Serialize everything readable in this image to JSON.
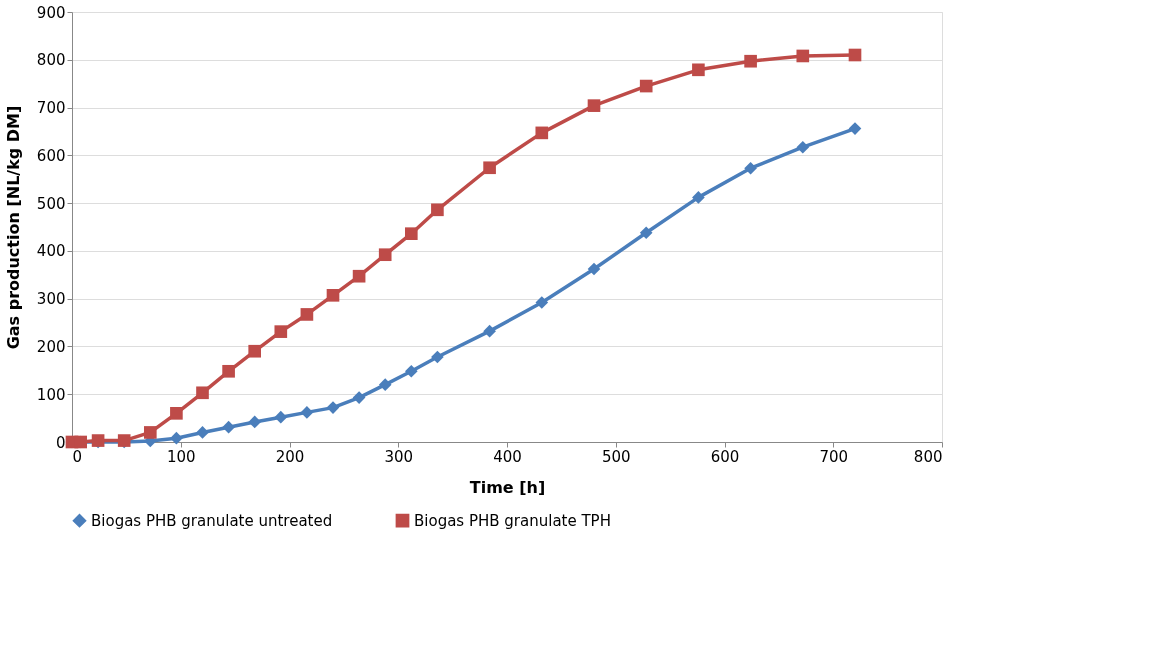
{
  "chart_data": {
    "type": "line",
    "xlabel": "Time [h]",
    "ylabel": "Gas production [NL/kg DM]",
    "xlim": [
      0,
      800
    ],
    "xticks": [
      0,
      100,
      200,
      300,
      400,
      500,
      600,
      700,
      800
    ],
    "ylim": [
      0,
      900
    ],
    "yticks": [
      0,
      100,
      200,
      300,
      400,
      500,
      600,
      700,
      800,
      900
    ],
    "grid": "y",
    "legend": "bottom",
    "line_style": "solid",
    "series": [
      {
        "name": "Biogas PHB granulate untreated",
        "color": "#4a7ebb",
        "marker": "diamond",
        "x": [
          0,
          8,
          24,
          48,
          72,
          96,
          120,
          144,
          168,
          192,
          216,
          240,
          264,
          288,
          312,
          336,
          384,
          432,
          480,
          528,
          576,
          624,
          672,
          720
        ],
        "values": [
          0,
          0,
          0,
          0,
          2,
          8,
          20,
          31,
          42,
          52,
          62,
          72,
          93,
          120,
          148,
          178,
          232,
          292,
          362,
          438,
          512,
          573,
          617,
          656
        ]
      },
      {
        "name": "Biogas PHB granulate TPH",
        "color": "#be4b48",
        "marker": "square",
        "x": [
          0,
          8,
          24,
          48,
          72,
          96,
          120,
          144,
          168,
          192,
          216,
          240,
          264,
          288,
          312,
          336,
          384,
          432,
          480,
          528,
          576,
          624,
          672,
          720
        ],
        "values": [
          0,
          0,
          3,
          3,
          20,
          60,
          103,
          148,
          190,
          231,
          267,
          307,
          347,
          392,
          436,
          486,
          574,
          647,
          704,
          745,
          779,
          797,
          808,
          810
        ]
      }
    ]
  }
}
